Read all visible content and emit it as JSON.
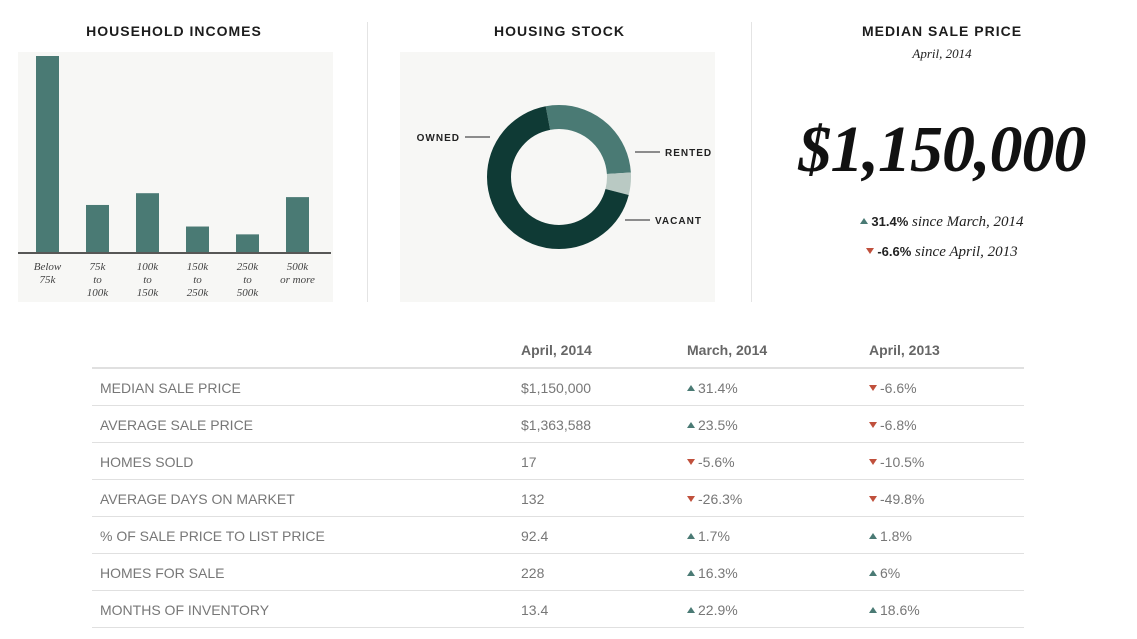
{
  "colors": {
    "bar": "#4a7a74",
    "donut_owned": "#0f3a35",
    "donut_rented": "#4a7a74",
    "donut_vacant": "#b9c9c3",
    "up": "#4a7a74",
    "down": "#c0503c"
  },
  "income": {
    "title": "HOUSEHOLD INCOMES",
    "chart_data": {
      "type": "bar",
      "categories": [
        [
          "Below",
          "75k"
        ],
        [
          "75k",
          "to",
          "100k"
        ],
        [
          "100k",
          "to",
          "150k"
        ],
        [
          "150k",
          "to",
          "250k"
        ],
        [
          "250k",
          "to",
          "500k"
        ],
        [
          "500k",
          "or more"
        ]
      ],
      "values": [
        100,
        24,
        30,
        13,
        9,
        28
      ]
    }
  },
  "housing": {
    "title": "HOUSING STOCK",
    "chart_data": {
      "type": "pie",
      "labels": [
        "OWNED",
        "RENTED",
        "VACANT"
      ],
      "values": [
        68,
        27,
        5
      ]
    }
  },
  "median": {
    "title": "MEDIAN SALE PRICE",
    "date": "April, 2014",
    "price": "$1,150,000",
    "change1": {
      "direction": "up",
      "value": "31.4%",
      "text": " since March, 2014"
    },
    "change2": {
      "direction": "down",
      "value": "-6.6%",
      "text": " since April, 2013"
    }
  },
  "table": {
    "headers": [
      "",
      "April, 2014",
      "March, 2014",
      "April, 2013"
    ],
    "rows": [
      {
        "label": "MEDIAN SALE PRICE",
        "current": "$1,150,000",
        "m_dir": "up",
        "m": "31.4%",
        "y_dir": "down",
        "y": "-6.6%"
      },
      {
        "label": "AVERAGE SALE PRICE",
        "current": "$1,363,588",
        "m_dir": "up",
        "m": "23.5%",
        "y_dir": "down",
        "y": "-6.8%"
      },
      {
        "label": "HOMES SOLD",
        "current": "17",
        "m_dir": "down",
        "m": "-5.6%",
        "y_dir": "down",
        "y": "-10.5%"
      },
      {
        "label": "AVERAGE DAYS ON MARKET",
        "current": "132",
        "m_dir": "down",
        "m": "-26.3%",
        "y_dir": "down",
        "y": "-49.8%"
      },
      {
        "label": "% OF SALE PRICE TO LIST PRICE",
        "current": "92.4",
        "m_dir": "up",
        "m": "1.7%",
        "y_dir": "up",
        "y": "1.8%"
      },
      {
        "label": "HOMES FOR SALE",
        "current": "228",
        "m_dir": "up",
        "m": "16.3%",
        "y_dir": "up",
        "y": "6%"
      },
      {
        "label": "MONTHS OF INVENTORY",
        "current": "13.4",
        "m_dir": "up",
        "m": "22.9%",
        "y_dir": "up",
        "y": "18.6%"
      }
    ]
  }
}
